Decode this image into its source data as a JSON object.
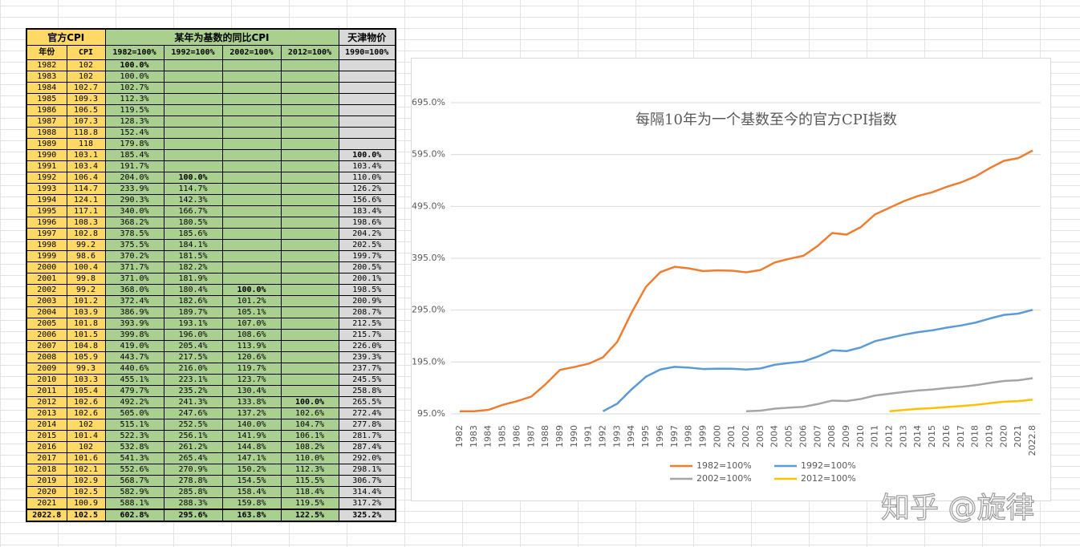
{
  "table": {
    "header": [
      [
        "官方CPI",
        "某年为基数的同比CPI",
        "天津物价"
      ],
      [
        "年份",
        "CPI",
        "1982=100%",
        "1992=100%",
        "2002=100%",
        "2012=100%",
        "1990=100%"
      ]
    ],
    "rows": [
      [
        "1982",
        "102",
        "100.0%",
        null,
        null,
        null,
        null
      ],
      [
        "1983",
        "102",
        "100.0%",
        null,
        null,
        null,
        null
      ],
      [
        "1984",
        "102.7",
        "102.7%",
        null,
        null,
        null,
        null
      ],
      [
        "1985",
        "109.3",
        "112.3%",
        null,
        null,
        null,
        null
      ],
      [
        "1986",
        "106.5",
        "119.5%",
        null,
        null,
        null,
        null
      ],
      [
        "1987",
        "107.3",
        "128.3%",
        null,
        null,
        null,
        null
      ],
      [
        "1988",
        "118.8",
        "152.4%",
        null,
        null,
        null,
        null
      ],
      [
        "1989",
        "118",
        "179.8%",
        null,
        null,
        null,
        null
      ],
      [
        "1990",
        "103.1",
        "185.4%",
        null,
        null,
        null,
        "100.0%"
      ],
      [
        "1991",
        "103.4",
        "191.7%",
        null,
        null,
        null,
        "103.4%"
      ],
      [
        "1992",
        "106.4",
        "204.0%",
        "100.0%",
        null,
        null,
        "110.0%"
      ],
      [
        "1993",
        "114.7",
        "233.9%",
        "114.7%",
        null,
        null,
        "126.2%"
      ],
      [
        "1994",
        "124.1",
        "290.3%",
        "142.3%",
        null,
        null,
        "156.6%"
      ],
      [
        "1995",
        "117.1",
        "340.0%",
        "166.7%",
        null,
        null,
        "183.4%"
      ],
      [
        "1996",
        "108.3",
        "368.2%",
        "180.5%",
        null,
        null,
        "198.6%"
      ],
      [
        "1997",
        "102.8",
        "378.5%",
        "185.6%",
        null,
        null,
        "204.2%"
      ],
      [
        "1998",
        "99.2",
        "375.5%",
        "184.1%",
        null,
        null,
        "202.5%"
      ],
      [
        "1999",
        "98.6",
        "370.2%",
        "181.5%",
        null,
        null,
        "199.7%"
      ],
      [
        "2000",
        "100.4",
        "371.7%",
        "182.2%",
        null,
        null,
        "200.5%"
      ],
      [
        "2001",
        "99.8",
        "371.0%",
        "181.9%",
        null,
        null,
        "200.1%"
      ],
      [
        "2002",
        "99.2",
        "368.0%",
        "180.4%",
        "100.0%",
        null,
        "198.5%"
      ],
      [
        "2003",
        "101.2",
        "372.4%",
        "182.6%",
        "101.2%",
        null,
        "200.9%"
      ],
      [
        "2004",
        "103.9",
        "386.9%",
        "189.7%",
        "105.1%",
        null,
        "208.7%"
      ],
      [
        "2005",
        "101.8",
        "393.9%",
        "193.1%",
        "107.0%",
        null,
        "212.5%"
      ],
      [
        "2006",
        "101.5",
        "399.8%",
        "196.0%",
        "108.6%",
        null,
        "215.7%"
      ],
      [
        "2007",
        "104.8",
        "419.0%",
        "205.4%",
        "113.9%",
        null,
        "226.0%"
      ],
      [
        "2008",
        "105.9",
        "443.7%",
        "217.5%",
        "120.6%",
        null,
        "239.3%"
      ],
      [
        "2009",
        "99.3",
        "440.6%",
        "216.0%",
        "119.7%",
        null,
        "237.7%"
      ],
      [
        "2010",
        "103.3",
        "455.1%",
        "223.1%",
        "123.7%",
        null,
        "245.5%"
      ],
      [
        "2011",
        "105.4",
        "479.7%",
        "235.2%",
        "130.4%",
        null,
        "258.8%"
      ],
      [
        "2012",
        "102.6",
        "492.2%",
        "241.3%",
        "133.8%",
        "100.0%",
        "265.5%"
      ],
      [
        "2013",
        "102.6",
        "505.0%",
        "247.6%",
        "137.2%",
        "102.6%",
        "272.4%"
      ],
      [
        "2014",
        "102",
        "515.1%",
        "252.5%",
        "140.0%",
        "104.7%",
        "277.8%"
      ],
      [
        "2015",
        "101.4",
        "522.3%",
        "256.1%",
        "141.9%",
        "106.1%",
        "281.7%"
      ],
      [
        "2016",
        "102",
        "532.8%",
        "261.2%",
        "144.8%",
        "108.2%",
        "287.4%"
      ],
      [
        "2017",
        "101.6",
        "541.3%",
        "265.4%",
        "147.1%",
        "110.0%",
        "292.0%"
      ],
      [
        "2018",
        "102.1",
        "552.6%",
        "270.9%",
        "150.2%",
        "112.3%",
        "298.1%"
      ],
      [
        "2019",
        "102.9",
        "568.7%",
        "278.8%",
        "154.5%",
        "115.5%",
        "306.7%"
      ],
      [
        "2020",
        "102.5",
        "582.9%",
        "285.8%",
        "158.4%",
        "118.4%",
        "314.4%"
      ],
      [
        "2021",
        "100.9",
        "588.1%",
        "288.3%",
        "159.8%",
        "119.5%",
        "317.2%"
      ],
      [
        "2022.8",
        "102.5",
        "602.8%",
        "295.6%",
        "163.8%",
        "122.5%",
        "325.2%"
      ]
    ]
  },
  "chart_data": {
    "type": "line",
    "title": "每隔10年为一个基数至今的官方CPI指数",
    "categories": [
      "1982",
      "1983",
      "1984",
      "1985",
      "1986",
      "1987",
      "1988",
      "1989",
      "1990",
      "1991",
      "1992",
      "1993",
      "1994",
      "1995",
      "1996",
      "1997",
      "1998",
      "1999",
      "2000",
      "2001",
      "2002",
      "2003",
      "2004",
      "2005",
      "2006",
      "2007",
      "2008",
      "2009",
      "2010",
      "2011",
      "2012",
      "2013",
      "2014",
      "2015",
      "2016",
      "2017",
      "2018",
      "2019",
      "2020",
      "2021",
      "2022.8"
    ],
    "series": [
      {
        "name": "1982=100%",
        "color": "#ed7d31",
        "values": [
          100.0,
          100.0,
          102.7,
          112.3,
          119.5,
          128.3,
          152.4,
          179.8,
          185.4,
          191.7,
          204.0,
          233.9,
          290.3,
          340.0,
          368.2,
          378.5,
          375.5,
          370.2,
          371.7,
          371.0,
          368.0,
          372.4,
          386.9,
          393.9,
          399.8,
          419.0,
          443.7,
          440.6,
          455.1,
          479.7,
          492.2,
          505.0,
          515.1,
          522.3,
          532.8,
          541.3,
          552.6,
          568.7,
          582.9,
          588.1,
          602.8
        ]
      },
      {
        "name": "1992=100%",
        "color": "#5b9bd5",
        "values": [
          null,
          null,
          null,
          null,
          null,
          null,
          null,
          null,
          null,
          null,
          100.0,
          114.7,
          142.3,
          166.7,
          180.5,
          185.6,
          184.1,
          181.5,
          182.2,
          181.9,
          180.4,
          182.6,
          189.7,
          193.1,
          196.0,
          205.4,
          217.5,
          216.0,
          223.1,
          235.2,
          241.3,
          247.6,
          252.5,
          256.1,
          261.2,
          265.4,
          270.9,
          278.8,
          285.8,
          288.3,
          295.6
        ]
      },
      {
        "name": "2002=100%",
        "color": "#a5a5a5",
        "values": [
          null,
          null,
          null,
          null,
          null,
          null,
          null,
          null,
          null,
          null,
          null,
          null,
          null,
          null,
          null,
          null,
          null,
          null,
          null,
          null,
          100.0,
          101.2,
          105.1,
          107.0,
          108.6,
          113.9,
          120.6,
          119.7,
          123.7,
          130.4,
          133.8,
          137.2,
          140.0,
          141.9,
          144.8,
          147.1,
          150.2,
          154.5,
          158.4,
          159.8,
          163.8
        ]
      },
      {
        "name": "2012=100%",
        "color": "#ffc000",
        "values": [
          null,
          null,
          null,
          null,
          null,
          null,
          null,
          null,
          null,
          null,
          null,
          null,
          null,
          null,
          null,
          null,
          null,
          null,
          null,
          null,
          null,
          null,
          null,
          null,
          null,
          null,
          null,
          null,
          null,
          null,
          100.0,
          102.6,
          104.7,
          106.1,
          108.2,
          110.0,
          112.3,
          115.5,
          118.4,
          119.5,
          122.5
        ]
      }
    ],
    "ylim": [
      95,
      695
    ],
    "yticks": [
      {
        "value": 95,
        "label": "95.0%"
      },
      {
        "value": 195,
        "label": "195.0%"
      },
      {
        "value": 295,
        "label": "295.0%"
      },
      {
        "value": 395,
        "label": "395.0%"
      },
      {
        "value": 495,
        "label": "495.0%"
      },
      {
        "value": 595,
        "label": "595.0%"
      },
      {
        "value": 695,
        "label": "695.0%"
      }
    ],
    "grid": true,
    "legend": "bottom"
  },
  "watermark": "知乎 @旋律"
}
